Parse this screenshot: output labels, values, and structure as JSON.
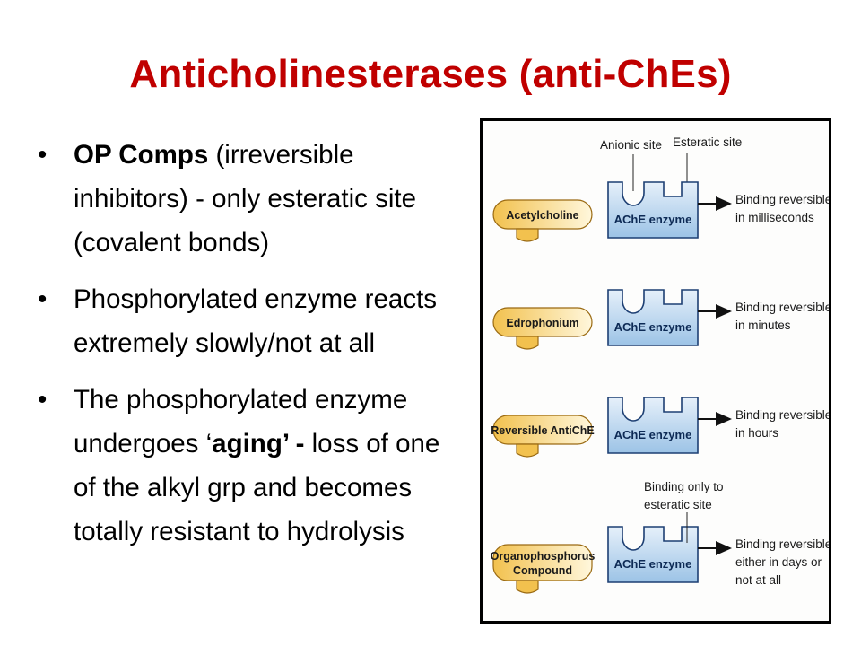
{
  "title": "Anticholinesterases (anti-ChEs)",
  "bullets": [
    {
      "bold": "OP Comps",
      "rest": " (irreversible inhibitors)  - only esteratic site (covalent bonds)"
    },
    {
      "text": "Phosphorylated enzyme reacts extremely slowly/not at all"
    },
    {
      "pre": "The phosphorylated enzyme undergoes  ‘",
      "bold": "aging’ -",
      "post": " loss of one of the alkyl grp  and becomes totally resistant to hydrolysis"
    }
  ],
  "figure": {
    "site_labels": {
      "anionic": "Anionic site",
      "esteratic": "Esteratic site"
    },
    "enzyme_label": "AChE enzyme",
    "esteratic_only_note": [
      "Binding only to",
      "esteratic site"
    ],
    "rows": [
      {
        "molecule": [
          "Acetylcholine"
        ],
        "binding": [
          "Binding reversible",
          "in milliseconds"
        ]
      },
      {
        "molecule": [
          "Edrophonium"
        ],
        "binding": [
          "Binding reversible",
          "in minutes"
        ]
      },
      {
        "molecule": [
          "Reversible AntiChE"
        ],
        "binding": [
          "Binding reversible",
          "in hours"
        ]
      },
      {
        "molecule": [
          "Organophosphorus",
          "Compound"
        ],
        "binding": [
          "Binding reversible",
          "either in days or",
          "not at all"
        ]
      }
    ]
  },
  "colors": {
    "title": "#c00000",
    "enzyme_fill": "#9cc3e6",
    "molecule_fill": "#f2c14e"
  }
}
